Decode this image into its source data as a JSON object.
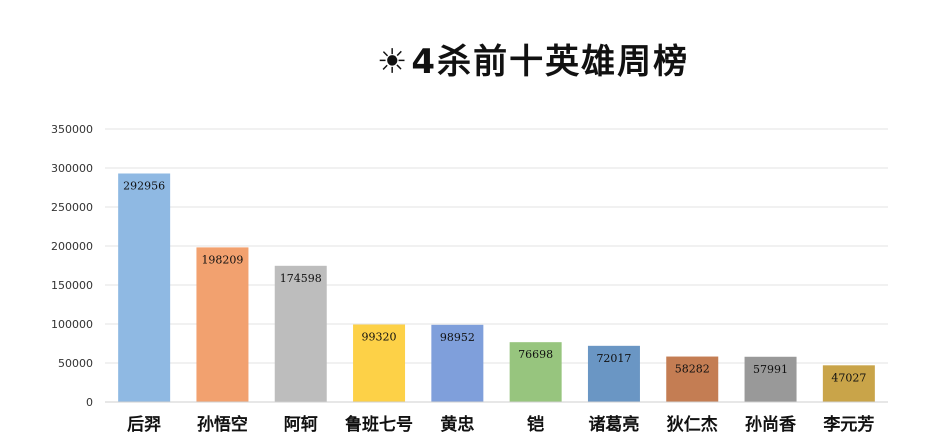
{
  "title_icon": "☀",
  "chart_data": {
    "type": "bar",
    "title": "4杀前十英雄周榜",
    "categories": [
      "后羿",
      "孙悟空",
      "阿轲",
      "鲁班七号",
      "黄忠",
      "铠",
      "诸葛亮",
      "狄仁杰",
      "孙尚香",
      "李元芳"
    ],
    "values": [
      292956,
      198209,
      174598,
      99320,
      98952,
      76698,
      72017,
      58282,
      57991,
      47027
    ],
    "data_labels": [
      "292956",
      "198209",
      "174598",
      "99320",
      "98952",
      "76698",
      "72017",
      "58282",
      "57991",
      "47027"
    ],
    "yticks": [
      "0",
      "50000",
      "100000",
      "150000",
      "200000",
      "250000",
      "300000",
      "350000"
    ],
    "ylim": [
      0,
      350000
    ],
    "grid": true,
    "legend": "none",
    "colors": [
      "#8fb9e3",
      "#f2a16f",
      "#bdbdbd",
      "#fdd147",
      "#7f9fdb",
      "#97c57e",
      "#6a96c4",
      "#c47d53",
      "#999999",
      "#c9a449"
    ]
  }
}
